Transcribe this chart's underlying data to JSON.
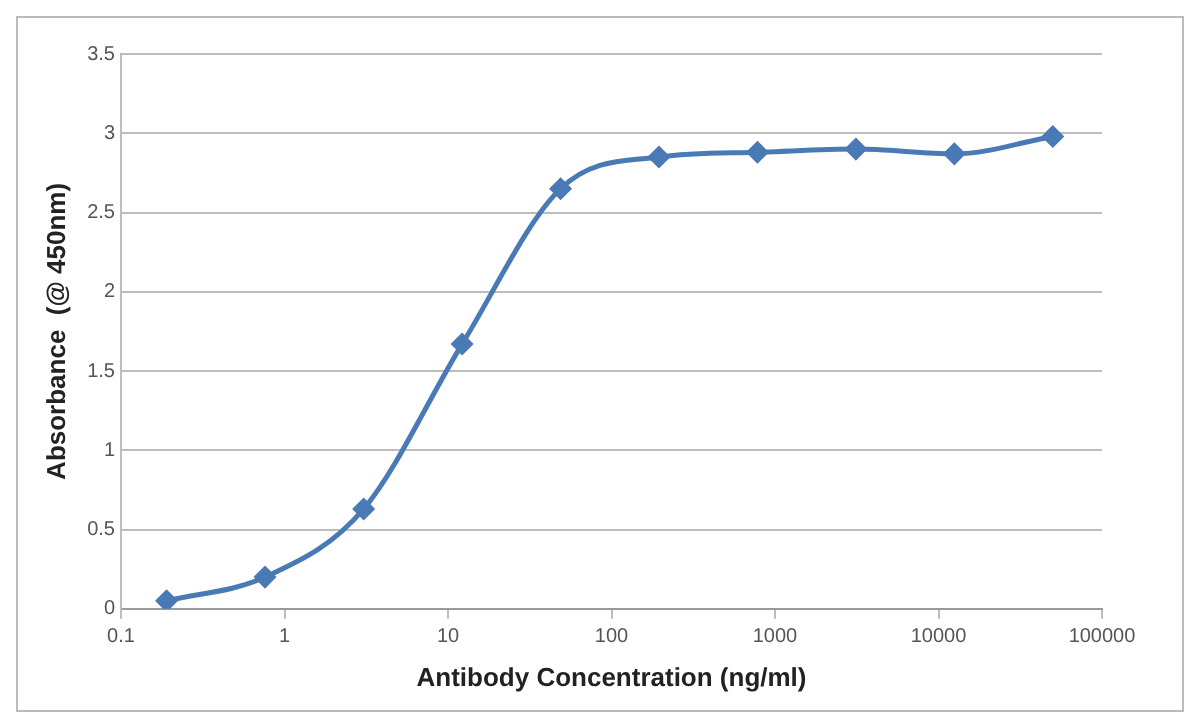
{
  "chart_data": {
    "type": "line",
    "xlabel": "Antibody Concentration (ng/ml)",
    "ylabel": "Absorbance  (@ 450nm)",
    "x": [
      0.19,
      0.76,
      3.05,
      12.2,
      48.8,
      195,
      781,
      3125,
      12500,
      50000
    ],
    "series": [
      {
        "color": "#4a7ab5",
        "values": [
          0.05,
          0.2,
          0.63,
          1.67,
          2.65,
          2.85,
          2.88,
          2.9,
          2.87,
          2.98
        ]
      }
    ],
    "log": "x",
    "xlim": [
      0.1,
      100000
    ],
    "xticks": [
      0.1,
      1,
      10,
      100,
      1000,
      10000,
      100000
    ],
    "ylim": [
      0,
      3.5
    ],
    "yticks": [
      0,
      0.5,
      1,
      1.5,
      2,
      2.5,
      3,
      3.5
    ],
    "grid": "y",
    "legend": false,
    "marker": "diamond",
    "line_style": "solid"
  }
}
